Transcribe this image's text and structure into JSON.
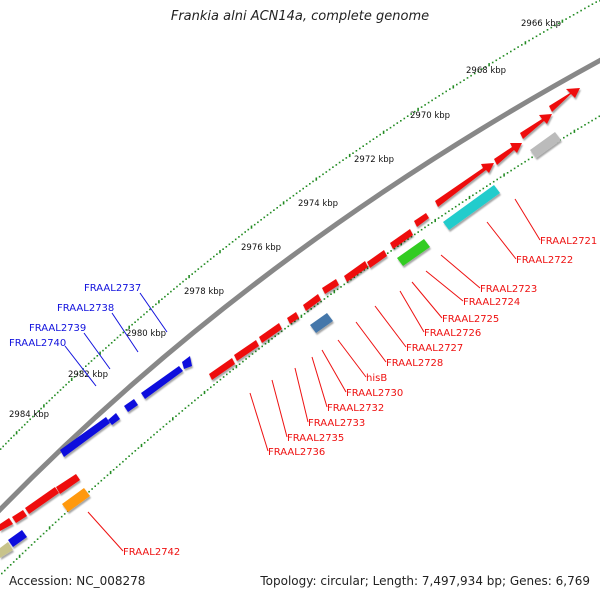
{
  "title": "Frankia alni ACN14a, complete genome",
  "accession": "Accession: NC_008278",
  "topology": "Topology: circular; Length: 7,497,934 bp; Genes: 6,769",
  "colors": {
    "red": "#ee1111",
    "blue": "#1111dd",
    "backbone": "#888888",
    "ruler": "#228b22",
    "cyan": "#22cccc",
    "green": "#33cc22",
    "orange": "#ff9911",
    "gray": "#bbbbbb",
    "steel": "#4477aa",
    "olive": "#c8c38a"
  },
  "kbp_labels": [
    "2966 kbp",
    "2968 kbp",
    "2970 kbp",
    "2972 kbp",
    "2974 kbp",
    "2976 kbp",
    "2978 kbp",
    "2980 kbp",
    "2982 kbp",
    "2984 kbp"
  ],
  "gene_labels_upper": [
    "FRAAL2737",
    "FRAAL2738",
    "FRAAL2739",
    "FRAAL2740"
  ],
  "gene_labels_lower": [
    "FRAAL2721",
    "FRAAL2722",
    "FRAAL2723",
    "FRAAL2724",
    "FRAAL2725",
    "FRAAL2726",
    "FRAAL2727",
    "FRAAL2728",
    "hisB",
    "FRAAL2730",
    "FRAAL2732",
    "FRAAL2733",
    "FRAAL2735",
    "FRAAL2736",
    "FRAAL2742"
  ]
}
